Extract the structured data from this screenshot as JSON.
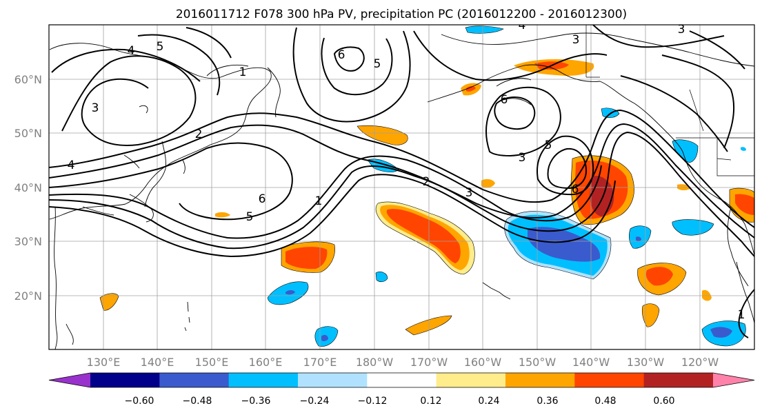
{
  "title": "2016011712 F078 300 hPa PV, precipitation PC (2016012200 - 2016012300)",
  "lat_labels": [
    "60°N",
    "50°N",
    "40°N",
    "30°N",
    "20°N"
  ],
  "lon_labels": [
    "130°E",
    "140°E",
    "150°E",
    "160°E",
    "170°E",
    "180°W",
    "170°W",
    "160°W",
    "150°W",
    "140°W",
    "130°W",
    "120°W"
  ],
  "colorbar": {
    "ticks": [
      "−0.60",
      "−0.48",
      "−0.36",
      "−0.24",
      "−0.12",
      "0.12",
      "0.24",
      "0.36",
      "0.48",
      "0.60"
    ],
    "colors": [
      "#9932cc",
      "#00008b",
      "#3a5bcd",
      "#00bfff",
      "#b0e2ff",
      "#ffffff",
      "#ffec8b",
      "#ffa500",
      "#ff4500",
      "#b22222",
      "#ff82ab"
    ]
  },
  "contour_labels": [
    {
      "text": "4"
    },
    {
      "text": "5"
    },
    {
      "text": "1"
    },
    {
      "text": "3"
    },
    {
      "text": "2"
    },
    {
      "text": "4"
    },
    {
      "text": "6"
    },
    {
      "text": "5"
    },
    {
      "text": "6"
    },
    {
      "text": "5"
    },
    {
      "text": "1"
    },
    {
      "text": "6"
    },
    {
      "text": "3"
    },
    {
      "text": "2"
    },
    {
      "text": "3"
    },
    {
      "text": "3"
    },
    {
      "text": "5"
    },
    {
      "text": "6"
    },
    {
      "text": "4"
    },
    {
      "text": "3"
    },
    {
      "text": "1"
    }
  ]
}
